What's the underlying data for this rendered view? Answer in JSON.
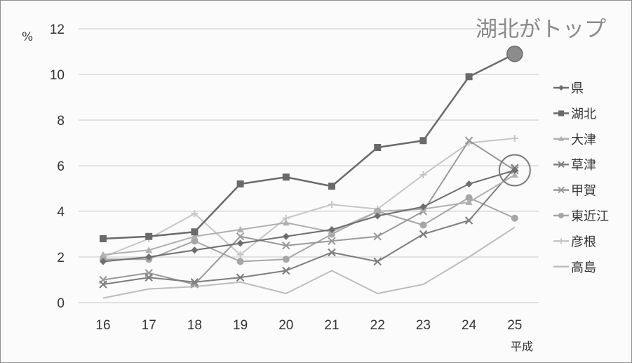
{
  "chart_data": {
    "type": "line",
    "title": "",
    "ylabel": "%",
    "xlabel": "平成",
    "ylim": [
      0,
      12
    ],
    "yticks": [
      0,
      2,
      4,
      6,
      8,
      10,
      12
    ],
    "categories": [
      "16",
      "17",
      "18",
      "19",
      "20",
      "21",
      "22",
      "23",
      "24",
      "25"
    ],
    "grid": true,
    "legend_position": "right",
    "annotation": "湖北がトップ",
    "series": [
      {
        "name": "県",
        "color": "#6e6e6e",
        "marker": "diamond",
        "width": 2,
        "values": [
          1.8,
          2.0,
          2.3,
          2.6,
          2.9,
          3.2,
          3.8,
          4.2,
          5.2,
          5.8
        ]
      },
      {
        "name": "湖北",
        "color": "#6a6a6a",
        "marker": "square",
        "width": 2.5,
        "values": [
          2.8,
          2.9,
          3.1,
          5.2,
          5.5,
          5.1,
          6.8,
          7.1,
          9.9,
          10.9
        ]
      },
      {
        "name": "大津",
        "color": "#b0b0b0",
        "marker": "triangle",
        "width": 2,
        "values": [
          2.1,
          2.3,
          2.9,
          3.2,
          3.5,
          3.1,
          4.0,
          4.1,
          4.4,
          5.6
        ]
      },
      {
        "name": "草津",
        "color": "#7d7d7d",
        "marker": "x",
        "width": 2,
        "values": [
          0.8,
          1.1,
          0.9,
          1.1,
          1.4,
          2.2,
          1.8,
          3.0,
          3.6,
          5.9
        ]
      },
      {
        "name": "甲賀",
        "color": "#9a9a9a",
        "marker": "x",
        "width": 2,
        "values": [
          1.0,
          1.3,
          0.8,
          2.9,
          2.5,
          2.7,
          2.9,
          4.0,
          7.1,
          5.8
        ]
      },
      {
        "name": "東近江",
        "color": "#a6a6a6",
        "marker": "circle",
        "width": 2,
        "values": [
          1.9,
          1.9,
          2.7,
          1.8,
          1.9,
          3.0,
          4.0,
          3.4,
          4.6,
          3.7
        ]
      },
      {
        "name": "彦根",
        "color": "#c6c6c6",
        "marker": "plus",
        "width": 2,
        "values": [
          2.0,
          2.8,
          3.9,
          2.1,
          3.7,
          4.3,
          4.1,
          5.6,
          7.0,
          7.2
        ]
      },
      {
        "name": "高島",
        "color": "#bdbdbd",
        "marker": "none",
        "width": 2,
        "values": [
          0.2,
          0.6,
          0.7,
          0.9,
          0.4,
          1.4,
          0.4,
          0.8,
          2.0,
          3.3
        ]
      }
    ],
    "highlight": {
      "big_dot_series": "湖北",
      "ring_series": "県",
      "at_category": "25"
    }
  }
}
